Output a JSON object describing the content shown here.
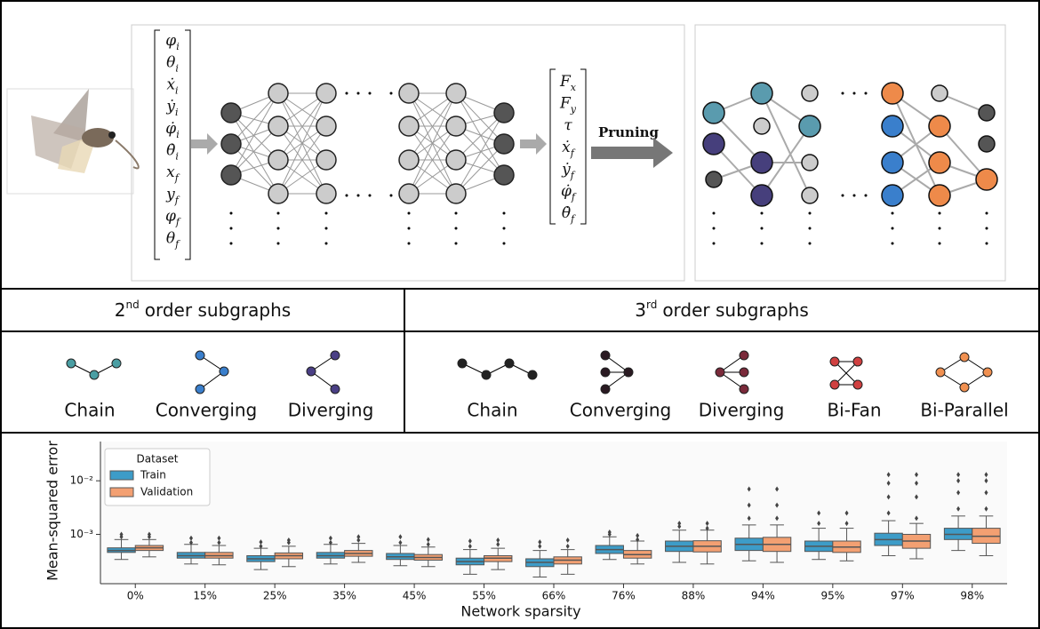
{
  "diagram": {
    "inputs": [
      {
        "base": "φ",
        "sub": "i"
      },
      {
        "base": "θ",
        "sub": "i"
      },
      {
        "base": "ẋ",
        "sub": "i"
      },
      {
        "base": "ẏ",
        "sub": "i"
      },
      {
        "base": "φ̇",
        "sub": "i"
      },
      {
        "base": "θ̇",
        "sub": "i"
      },
      {
        "base": "x",
        "sub": "f"
      },
      {
        "base": "y",
        "sub": "f"
      },
      {
        "base": "φ",
        "sub": "f"
      },
      {
        "base": "θ",
        "sub": "f"
      }
    ],
    "outputs": [
      {
        "base": "F",
        "sub": "x"
      },
      {
        "base": "F",
        "sub": "y"
      },
      {
        "base": "τ",
        "sub": ""
      },
      {
        "base": "ẋ",
        "sub": "f"
      },
      {
        "base": "ẏ",
        "sub": "f"
      },
      {
        "base": "φ̇",
        "sub": "f"
      },
      {
        "base": "θ̇",
        "sub": "f"
      }
    ],
    "arrow_label": "Pruning"
  },
  "subgraphs": {
    "second_order": {
      "header": {
        "number": "2",
        "sup": "nd",
        "text": "order subgraphs"
      },
      "motifs": [
        "Chain",
        "Converging",
        "Diverging"
      ]
    },
    "third_order": {
      "header": {
        "number": "3",
        "sup": "rd",
        "text": "order subgraphs"
      },
      "motifs": [
        "Chain",
        "Converging",
        "Diverging",
        "Bi-Fan",
        "Bi-Parallel"
      ]
    }
  },
  "chart_data": {
    "type": "box",
    "x_label": "Network sparsity",
    "y_label": "Mean-squared error",
    "categories": [
      "0%",
      "15%",
      "25%",
      "35%",
      "45%",
      "55%",
      "66%",
      "76%",
      "88%",
      "94%",
      "95%",
      "97%",
      "98%"
    ],
    "y_scale": "log",
    "ylim": [
      0.00012,
      0.054
    ],
    "yticks": [
      {
        "value": 0.001,
        "label": "10⁻³"
      },
      {
        "value": 0.01,
        "label": "10⁻²"
      }
    ],
    "legend": {
      "title": "Dataset",
      "position": "upper left"
    },
    "series": [
      {
        "name": "Train",
        "color": "#3d9cc8",
        "low": [
          0.00034,
          0.00028,
          0.00022,
          0.00028,
          0.00026,
          0.00018,
          0.00016,
          0.00034,
          0.0003,
          0.00032,
          0.00034,
          0.0004,
          0.0005
        ],
        "q1": [
          0.00046,
          0.00036,
          0.00031,
          0.00036,
          0.00034,
          0.00027,
          0.00025,
          0.00044,
          0.00048,
          0.0005,
          0.00048,
          0.00062,
          0.0008
        ],
        "median": [
          0.0005,
          0.0004,
          0.00035,
          0.0004,
          0.00038,
          0.00031,
          0.0003,
          0.00052,
          0.0006,
          0.00065,
          0.0006,
          0.0008,
          0.001
        ],
        "q3": [
          0.00056,
          0.00046,
          0.0004,
          0.00046,
          0.00044,
          0.00036,
          0.00035,
          0.00062,
          0.00075,
          0.00085,
          0.00075,
          0.00105,
          0.0013
        ],
        "high": [
          0.0008,
          0.00065,
          0.00055,
          0.00065,
          0.00062,
          0.00052,
          0.0005,
          0.0009,
          0.0012,
          0.0015,
          0.0013,
          0.0018,
          0.0022
        ],
        "outliers": [
          [
            0.0009,
            0.001
          ],
          [
            0.0007,
            0.00085
          ],
          [
            0.0006,
            0.00072
          ],
          [
            0.0007,
            0.00085
          ],
          [
            0.0007,
            0.0009
          ],
          [
            0.0006,
            0.00075
          ],
          [
            0.0006,
            0.00072
          ],
          [
            0.001,
            0.0011
          ],
          [
            0.0014,
            0.0016
          ],
          [
            0.002,
            0.0035,
            0.007
          ],
          [
            0.0016,
            0.0025
          ],
          [
            0.0025,
            0.005,
            0.009,
            0.013
          ],
          [
            0.003,
            0.006,
            0.01,
            0.013
          ]
        ]
      },
      {
        "name": "Validation",
        "color": "#f3a072",
        "low": [
          0.00038,
          0.00027,
          0.00025,
          0.0003,
          0.00025,
          0.00022,
          0.00018,
          0.00028,
          0.00028,
          0.0003,
          0.00032,
          0.00035,
          0.0004
        ],
        "q1": [
          0.0005,
          0.00036,
          0.00035,
          0.00039,
          0.00033,
          0.00031,
          0.00028,
          0.00036,
          0.00047,
          0.00048,
          0.00046,
          0.00055,
          0.00068
        ],
        "median": [
          0.00056,
          0.0004,
          0.0004,
          0.00044,
          0.00037,
          0.00036,
          0.00033,
          0.00042,
          0.0006,
          0.00065,
          0.00058,
          0.00075,
          0.00092
        ],
        "q3": [
          0.00062,
          0.00046,
          0.00045,
          0.0005,
          0.00042,
          0.0004,
          0.00038,
          0.0005,
          0.00076,
          0.00088,
          0.00075,
          0.001,
          0.0013
        ],
        "high": [
          0.0008,
          0.00062,
          0.0006,
          0.00068,
          0.00058,
          0.00055,
          0.00052,
          0.00075,
          0.0012,
          0.0015,
          0.0013,
          0.0016,
          0.0022
        ],
        "outliers": [
          [
            0.0009,
            0.001
          ],
          [
            0.0007,
            0.00085
          ],
          [
            0.0007,
            0.00078
          ],
          [
            0.00078,
            0.0009
          ],
          [
            0.00065,
            0.0008
          ],
          [
            0.00065,
            0.00078
          ],
          [
            0.0006,
            0.00078
          ],
          [
            0.0008,
            0.00095
          ],
          [
            0.0013,
            0.0016
          ],
          [
            0.002,
            0.0035,
            0.007
          ],
          [
            0.0016,
            0.0025
          ],
          [
            0.002,
            0.005,
            0.009,
            0.013
          ],
          [
            0.003,
            0.006,
            0.01,
            0.013
          ]
        ]
      }
    ]
  }
}
